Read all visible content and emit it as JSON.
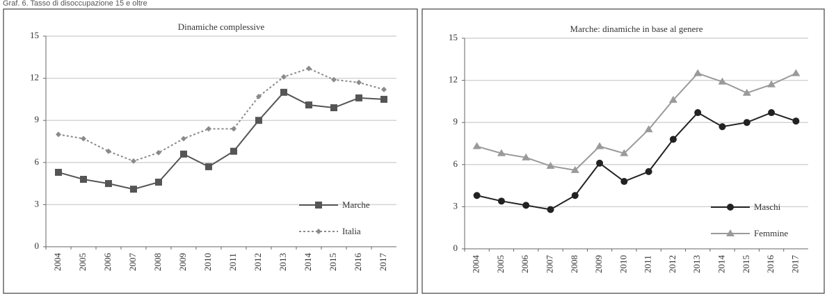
{
  "header": "Graf. 6. Tasso di disoccupazione 15 e oltre",
  "chart_data": [
    {
      "type": "line",
      "title": "Dinamiche complessive",
      "categories": [
        "2004",
        "2005",
        "2006",
        "2007",
        "2008",
        "2009",
        "2010",
        "2011",
        "2012",
        "2013",
        "2014",
        "2015",
        "2016",
        "2017"
      ],
      "series": [
        {
          "name": "Marche",
          "color": "#555555",
          "marker": "square",
          "dash": false,
          "values": [
            5.3,
            4.8,
            4.5,
            4.1,
            4.6,
            6.6,
            5.7,
            6.8,
            9.0,
            11.0,
            10.1,
            9.9,
            10.6,
            10.5
          ]
        },
        {
          "name": "Italia",
          "color": "#8a8a8a",
          "marker": "diamond",
          "dash": true,
          "values": [
            8.0,
            7.7,
            6.8,
            6.1,
            6.7,
            7.7,
            8.4,
            8.4,
            10.7,
            12.1,
            12.7,
            11.9,
            11.7,
            11.2
          ]
        }
      ],
      "ylim": [
        0,
        15
      ],
      "yticks": [
        0,
        3,
        6,
        9,
        12,
        15
      ],
      "grid": true,
      "legend": "lower right"
    },
    {
      "type": "line",
      "title": "Marche: dinamiche in base al genere",
      "categories": [
        "2004",
        "2005",
        "2006",
        "2007",
        "2008",
        "2009",
        "2010",
        "2011",
        "2012",
        "2013",
        "2014",
        "2015",
        "2016",
        "2017"
      ],
      "series": [
        {
          "name": "Maschi",
          "color": "#222222",
          "marker": "circle",
          "dash": false,
          "values": [
            3.8,
            3.4,
            3.1,
            2.8,
            3.8,
            6.1,
            4.8,
            5.5,
            7.8,
            9.7,
            8.7,
            9.0,
            9.7,
            9.1
          ]
        },
        {
          "name": "Femmine",
          "color": "#9a9a9a",
          "marker": "triangle",
          "dash": false,
          "values": [
            7.3,
            6.8,
            6.5,
            5.9,
            5.6,
            7.3,
            6.8,
            8.5,
            10.6,
            12.5,
            11.9,
            11.1,
            11.7,
            12.5
          ]
        }
      ],
      "ylim": [
        0,
        15
      ],
      "yticks": [
        0,
        3,
        6,
        9,
        12,
        15
      ],
      "grid": true,
      "legend": "lower right"
    }
  ]
}
